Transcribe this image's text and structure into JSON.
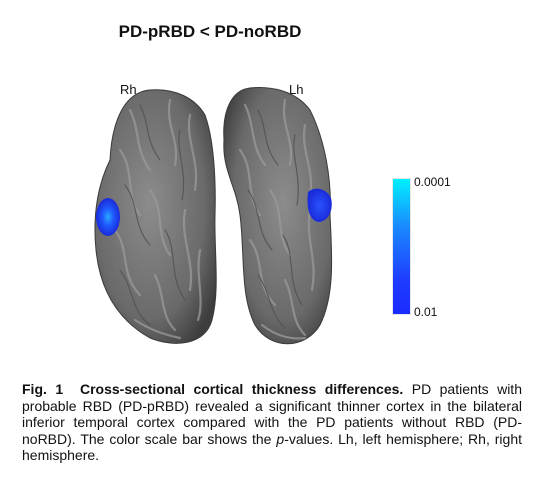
{
  "figure": {
    "title": "PD-pRBD < PD-noRBD",
    "labels": {
      "right_hemisphere": "Rh",
      "left_hemisphere": "Lh"
    }
  },
  "colorbar": {
    "top_label": "0.0001",
    "bottom_label": "0.01",
    "colors": {
      "top": "#00f0ff",
      "bottom": "#1a2bff"
    }
  },
  "caption": {
    "fig_number": "Fig. 1",
    "heading": "Cross-sectional cortical thickness differences.",
    "text_before_p": "PD patients with probable RBD (PD-pRBD) revealed a significant thinner cortex in the bilateral inferior temporal cortex compared with the PD patients without RBD (PD-noRBD). The color scale bar shows the",
    "p_symbol": "p",
    "text_after_p": "-values. Lh, left hemisphere; Rh, right hemisphere."
  },
  "colors": {
    "cortex": "#6e6e6e",
    "cortex_light": "#8a8a8a",
    "highlight": "#1f3cff"
  }
}
